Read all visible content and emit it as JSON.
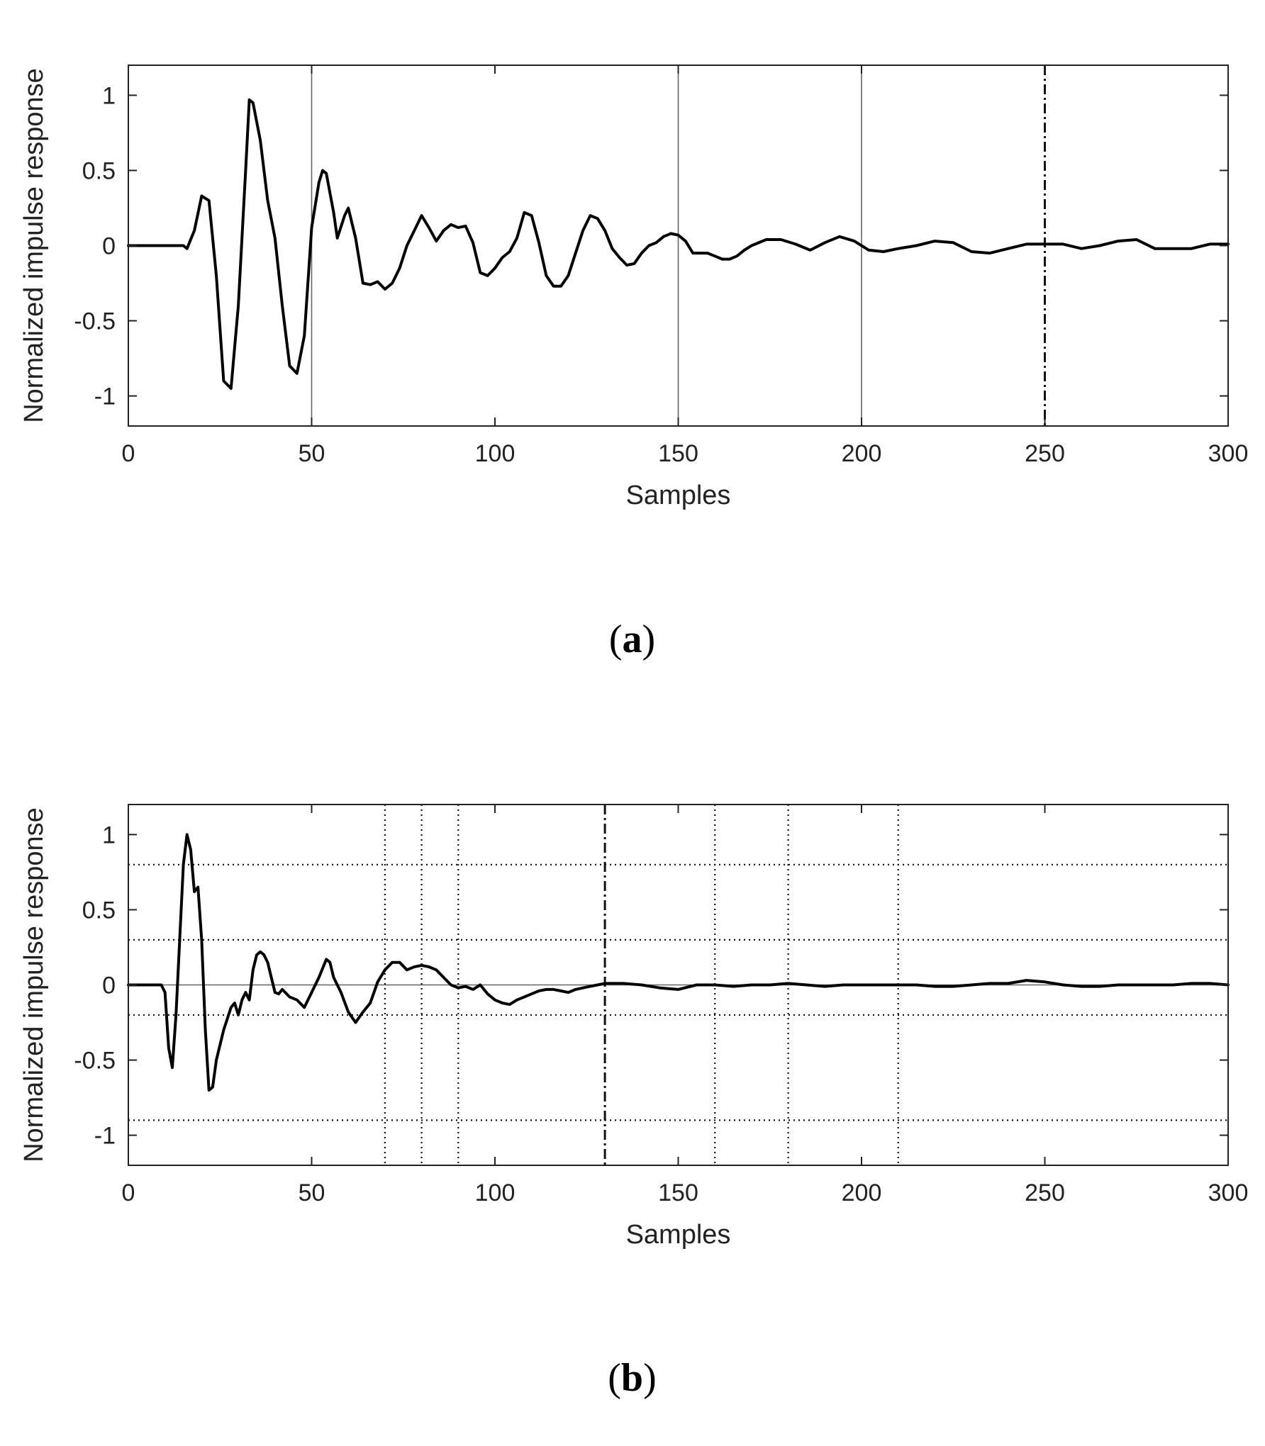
{
  "chart_data": [
    {
      "type": "line",
      "panel_label": "(a)",
      "xlabel": "Samples",
      "ylabel": "Normalized impulse response",
      "xlim": [
        0,
        300
      ],
      "ylim": [
        -1.2,
        1.2
      ],
      "xticks": [
        0,
        50,
        100,
        150,
        200,
        250,
        300
      ],
      "yticks": [
        1,
        0.5,
        0,
        -0.5,
        -1
      ],
      "ytick_labels": [
        "1",
        "0.5",
        "0",
        "-0.5",
        "-1"
      ],
      "grid": false,
      "vlines": [
        {
          "x": 50,
          "style": "solid-thin"
        },
        {
          "x": 150,
          "style": "solid-thin"
        },
        {
          "x": 200,
          "style": "solid-thin"
        },
        {
          "x": 250,
          "style": "dashdot"
        }
      ],
      "hlines": [],
      "series": [
        {
          "x": [
            0,
            5,
            10,
            13,
            15,
            16,
            18,
            20,
            22,
            24,
            26,
            28,
            30,
            32,
            33,
            34,
            36,
            38,
            40,
            42,
            44,
            46,
            48,
            50,
            52,
            53,
            54,
            56,
            57,
            59,
            60,
            62,
            64,
            66,
            68,
            70,
            72,
            74,
            76,
            78,
            80,
            82,
            84,
            86,
            88,
            90,
            92,
            94,
            96,
            98,
            100,
            102,
            104,
            106,
            108,
            110,
            112,
            114,
            116,
            118,
            120,
            122,
            124,
            126,
            128,
            130,
            132,
            134,
            136,
            138,
            140,
            142,
            144,
            146,
            148,
            150,
            152,
            154,
            156,
            158,
            160,
            162,
            164,
            166,
            168,
            170,
            174,
            178,
            182,
            186,
            190,
            194,
            198,
            202,
            206,
            210,
            215,
            220,
            225,
            230,
            235,
            240,
            245,
            250,
            255,
            260,
            265,
            270,
            275,
            280,
            285,
            290,
            295,
            300
          ],
          "y": [
            0,
            0,
            0,
            0,
            0,
            -0.02,
            0.1,
            0.33,
            0.3,
            -0.2,
            -0.9,
            -0.95,
            -0.4,
            0.5,
            0.97,
            0.95,
            0.7,
            0.3,
            0.05,
            -0.4,
            -0.8,
            -0.85,
            -0.6,
            0.12,
            0.42,
            0.5,
            0.48,
            0.22,
            0.05,
            0.2,
            0.25,
            0.05,
            -0.25,
            -0.26,
            -0.24,
            -0.29,
            -0.25,
            -0.15,
            0,
            0.1,
            0.2,
            0.12,
            0.03,
            0.1,
            0.14,
            0.12,
            0.13,
            0.02,
            -0.18,
            -0.2,
            -0.15,
            -0.08,
            -0.04,
            0.05,
            0.22,
            0.2,
            0.02,
            -0.2,
            -0.27,
            -0.27,
            -0.2,
            -0.05,
            0.1,
            0.2,
            0.18,
            0.1,
            -0.02,
            -0.08,
            -0.13,
            -0.12,
            -0.05,
            0,
            0.02,
            0.06,
            0.08,
            0.07,
            0.03,
            -0.05,
            -0.05,
            -0.05,
            -0.07,
            -0.09,
            -0.09,
            -0.07,
            -0.03,
            0,
            0.04,
            0.04,
            0.01,
            -0.03,
            0.02,
            0.06,
            0.03,
            -0.03,
            -0.04,
            -0.02,
            0,
            0.03,
            0.02,
            -0.04,
            -0.05,
            -0.02,
            0.01,
            0.01,
            0.01,
            -0.02,
            0,
            0.03,
            0.04,
            -0.02,
            -0.02,
            -0.02,
            0.01,
            0.01
          ]
        }
      ]
    },
    {
      "type": "line",
      "panel_label": "(b)",
      "xlabel": "Samples",
      "ylabel": "Normalized impulse response",
      "xlim": [
        0,
        300
      ],
      "ylim": [
        -1.2,
        1.2
      ],
      "xticks": [
        0,
        50,
        100,
        150,
        200,
        250,
        300
      ],
      "yticks": [
        1,
        0.5,
        0,
        -0.5,
        -1
      ],
      "ytick_labels": [
        "1",
        "0.5",
        "0",
        "-0.5",
        "-1"
      ],
      "grid": false,
      "vlines": [
        {
          "x": 70,
          "style": "dotted"
        },
        {
          "x": 80,
          "style": "dotted"
        },
        {
          "x": 90,
          "style": "dotted"
        },
        {
          "x": 130,
          "style": "dashdot"
        },
        {
          "x": 160,
          "style": "dotted"
        },
        {
          "x": 180,
          "style": "dotted"
        },
        {
          "x": 210,
          "style": "dotted"
        }
      ],
      "hlines": [
        {
          "y": 0.8,
          "style": "dotted"
        },
        {
          "y": 0.3,
          "style": "dotted"
        },
        {
          "y": 0,
          "style": "solid-thin"
        },
        {
          "y": -0.2,
          "style": "dotted"
        },
        {
          "y": -0.9,
          "style": "dotted"
        }
      ],
      "series": [
        {
          "x": [
            0,
            5,
            9,
            10,
            11,
            12,
            13,
            14,
            15,
            16,
            17,
            18,
            19,
            20,
            21,
            22,
            23,
            24,
            26,
            28,
            29,
            30,
            31,
            32,
            33,
            34,
            35,
            36,
            37,
            38,
            39,
            40,
            41,
            42,
            44,
            46,
            48,
            50,
            52,
            54,
            55,
            56,
            58,
            60,
            62,
            64,
            66,
            68,
            70,
            72,
            74,
            76,
            78,
            80,
            82,
            84,
            86,
            88,
            90,
            92,
            94,
            96,
            98,
            100,
            102,
            104,
            106,
            108,
            110,
            112,
            114,
            116,
            118,
            120,
            122,
            124,
            126,
            128,
            130,
            135,
            140,
            145,
            150,
            155,
            160,
            165,
            170,
            175,
            180,
            185,
            190,
            195,
            200,
            205,
            210,
            215,
            220,
            225,
            230,
            235,
            240,
            245,
            250,
            255,
            260,
            265,
            270,
            275,
            280,
            285,
            290,
            295,
            300
          ],
          "y": [
            0,
            0,
            0,
            -0.05,
            -0.42,
            -0.55,
            -0.2,
            0.3,
            0.8,
            1,
            0.9,
            0.62,
            0.65,
            0.3,
            -0.3,
            -0.7,
            -0.68,
            -0.5,
            -0.3,
            -0.15,
            -0.12,
            -0.2,
            -0.1,
            -0.05,
            -0.1,
            0.1,
            0.2,
            0.22,
            0.2,
            0.15,
            0.05,
            -0.05,
            -0.06,
            -0.03,
            -0.08,
            -0.1,
            -0.15,
            -0.05,
            0.05,
            0.17,
            0.15,
            0.05,
            -0.05,
            -0.18,
            -0.25,
            -0.18,
            -0.12,
            0.02,
            0.1,
            0.15,
            0.15,
            0.1,
            0.12,
            0.13,
            0.12,
            0.1,
            0.05,
            0,
            -0.02,
            -0.01,
            -0.03,
            0,
            -0.06,
            -0.1,
            -0.12,
            -0.13,
            -0.1,
            -0.08,
            -0.06,
            -0.04,
            -0.03,
            -0.03,
            -0.04,
            -0.05,
            -0.03,
            -0.02,
            -0.01,
            0,
            0.01,
            0.01,
            0,
            -0.02,
            -0.03,
            0,
            0,
            -0.01,
            0,
            0,
            0.01,
            0,
            -0.01,
            0,
            0,
            0,
            0,
            0,
            -0.01,
            -0.01,
            0,
            0.01,
            0.01,
            0.03,
            0.02,
            0,
            -0.01,
            -0.01,
            0,
            0,
            0,
            0,
            0.01,
            0.01,
            0
          ]
        }
      ]
    }
  ]
}
